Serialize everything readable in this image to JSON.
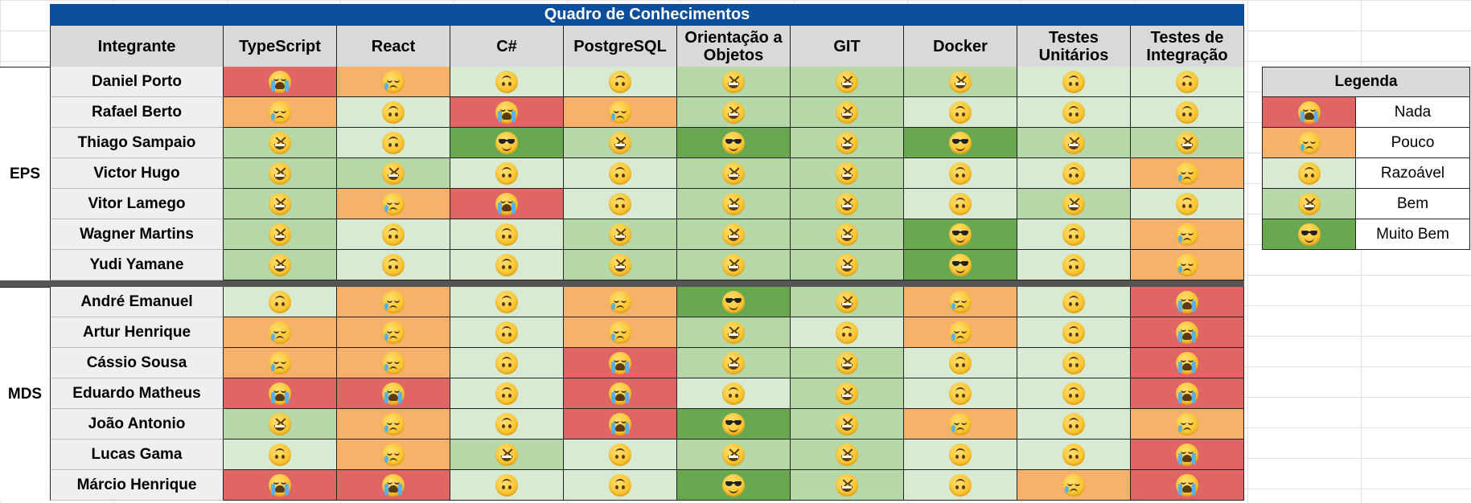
{
  "table": {
    "title": "Quadro de Conhecimentos",
    "member_header": "Integrante",
    "columns": [
      "TypeScript",
      "React",
      "C#",
      "PostgreSQL",
      "Orientação a Objetos",
      "GIT",
      "Docker",
      "Testes Unitários",
      "Testes de Integração"
    ],
    "groups": [
      {
        "name": "EPS",
        "members": [
          {
            "name": "Daniel Porto",
            "levels": [
              "nada",
              "pouco",
              "razoavel",
              "razoavel",
              "bem",
              "bem",
              "bem",
              "razoavel",
              "razoavel"
            ]
          },
          {
            "name": "Rafael Berto",
            "levels": [
              "pouco",
              "razoavel",
              "nada",
              "pouco",
              "bem",
              "bem",
              "razoavel",
              "razoavel",
              "razoavel"
            ]
          },
          {
            "name": "Thiago Sampaio",
            "levels": [
              "bem",
              "razoavel",
              "muito",
              "bem",
              "muito",
              "bem",
              "muito",
              "bem",
              "bem"
            ]
          },
          {
            "name": "Victor Hugo",
            "levels": [
              "bem",
              "bem",
              "razoavel",
              "razoavel",
              "bem",
              "bem",
              "razoavel",
              "razoavel",
              "pouco"
            ]
          },
          {
            "name": "Vitor Lamego",
            "levels": [
              "bem",
              "pouco",
              "nada",
              "razoavel",
              "bem",
              "bem",
              "razoavel",
              "bem",
              "razoavel"
            ]
          },
          {
            "name": "Wagner Martins",
            "levels": [
              "bem",
              "razoavel",
              "razoavel",
              "bem",
              "bem",
              "bem",
              "muito",
              "razoavel",
              "pouco"
            ]
          },
          {
            "name": "Yudi Yamane",
            "levels": [
              "bem",
              "razoavel",
              "razoavel",
              "bem",
              "bem",
              "bem",
              "muito",
              "razoavel",
              "pouco"
            ]
          }
        ]
      },
      {
        "name": "MDS",
        "members": [
          {
            "name": "André Emanuel",
            "levels": [
              "razoavel",
              "pouco",
              "razoavel",
              "pouco",
              "muito",
              "bem",
              "pouco",
              "razoavel",
              "nada"
            ]
          },
          {
            "name": "Artur Henrique",
            "levels": [
              "pouco",
              "pouco",
              "razoavel",
              "pouco",
              "bem",
              "razoavel",
              "pouco",
              "razoavel",
              "nada"
            ]
          },
          {
            "name": "Cássio Sousa",
            "levels": [
              "pouco",
              "pouco",
              "razoavel",
              "nada",
              "bem",
              "bem",
              "razoavel",
              "razoavel",
              "nada"
            ]
          },
          {
            "name": "Eduardo Matheus",
            "levels": [
              "nada",
              "nada",
              "razoavel",
              "nada",
              "razoavel",
              "bem",
              "razoavel",
              "razoavel",
              "nada"
            ]
          },
          {
            "name": "João Antonio",
            "levels": [
              "bem",
              "pouco",
              "razoavel",
              "nada",
              "muito",
              "bem",
              "pouco",
              "razoavel",
              "pouco"
            ]
          },
          {
            "name": "Lucas Gama",
            "levels": [
              "razoavel",
              "pouco",
              "bem",
              "razoavel",
              "bem",
              "bem",
              "razoavel",
              "razoavel",
              "nada"
            ]
          },
          {
            "name": "Márcio Henrique",
            "levels": [
              "nada",
              "nada",
              "razoavel",
              "razoavel",
              "muito",
              "bem",
              "razoavel",
              "pouco",
              "nada"
            ]
          }
        ]
      }
    ]
  },
  "legend": {
    "title": "Legenda",
    "items": [
      {
        "key": "nada",
        "label": "Nada",
        "color": "#e06666",
        "emoji": "loudly-crying-face-icon"
      },
      {
        "key": "pouco",
        "label": "Pouco",
        "color": "#f6b26b",
        "emoji": "crying-face-icon"
      },
      {
        "key": "razoavel",
        "label": "Razoável",
        "color": "#d9ead3",
        "emoji": "upside-down-face-icon"
      },
      {
        "key": "bem",
        "label": "Bem",
        "color": "#b6d7a8",
        "emoji": "grinning-squinting-face-icon"
      },
      {
        "key": "muito",
        "label": "Muito Bem",
        "color": "#6aa84f",
        "emoji": "smiling-face-with-sunglasses-icon"
      }
    ]
  },
  "colors": {
    "title_bar": "#0b4f9c",
    "header_bg": "#d9d9d9",
    "name_bg": "#efefef",
    "divider": "#555555"
  }
}
